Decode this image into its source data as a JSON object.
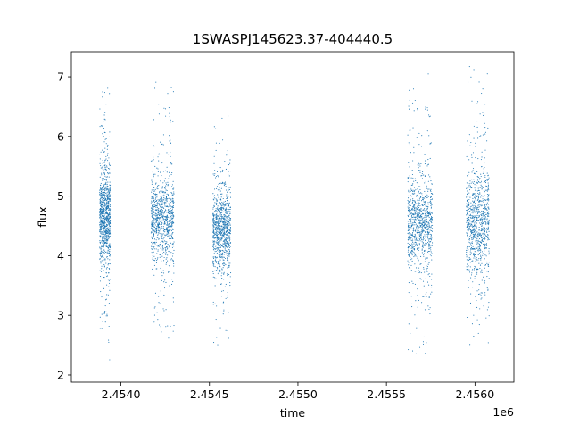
{
  "chart_data": {
    "type": "scatter",
    "title": "1SWASPJ145623.37-404440.5",
    "xlabel": "time",
    "ylabel": "flux",
    "x_offset_label": "1e6",
    "x_ticks": [
      2.454,
      2.4545,
      2.455,
      2.4555,
      2.456
    ],
    "x_tick_labels": [
      "2.4540",
      "2.4545",
      "2.4550",
      "2.4555",
      "2.4560"
    ],
    "y_ticks": [
      2,
      3,
      4,
      5,
      6,
      7
    ],
    "y_tick_labels": [
      "2",
      "3",
      "4",
      "5",
      "6",
      "7"
    ],
    "xlim": [
      2.45372,
      2.45622
    ],
    "ylim": [
      1.88,
      7.42
    ],
    "grid": false,
    "point_color": "#1f77b4",
    "series": [
      {
        "points_summary": "dense vertical clusters of flux measurements",
        "clusters": [
          {
            "x_start": 2.45388,
            "x_end": 2.45394,
            "y_median": 4.65,
            "y_core": [
              4.0,
              5.3
            ],
            "y_range": [
              2.1,
              6.9
            ]
          },
          {
            "x_start": 2.45417,
            "x_end": 2.4543,
            "y_median": 4.6,
            "y_core": [
              4.05,
              5.2
            ],
            "y_range": [
              2.6,
              7.1
            ]
          },
          {
            "x_start": 2.45452,
            "x_end": 2.45462,
            "y_median": 4.45,
            "y_core": [
              3.95,
              5.1
            ],
            "y_range": [
              2.5,
              6.4
            ]
          },
          {
            "x_start": 2.45562,
            "x_end": 2.45576,
            "y_median": 4.55,
            "y_core": [
              3.9,
              5.2
            ],
            "y_range": [
              2.15,
              7.1
            ]
          },
          {
            "x_start": 2.45595,
            "x_end": 2.45608,
            "y_median": 4.55,
            "y_core": [
              3.85,
              5.3
            ],
            "y_range": [
              2.4,
              7.2
            ]
          }
        ]
      }
    ]
  }
}
